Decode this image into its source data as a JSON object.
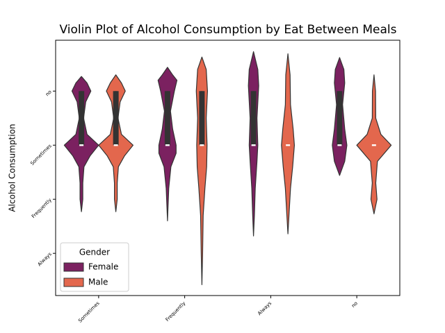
{
  "chart_data": {
    "type": "violin",
    "title": "Violin Plot of Alcohol Consumption by Eat Between Meals",
    "y_label": "Alcohol Consumption",
    "categories": [
      "Sometimes",
      "Frequently",
      "Always",
      "no"
    ],
    "ylim": [
      -0.94,
      3.78
    ],
    "y_inverted": true,
    "yticks": [
      {
        "value": 0,
        "label": "no"
      },
      {
        "value": 1,
        "label": "Sometimes"
      },
      {
        "value": 2,
        "label": "Frequently"
      },
      {
        "value": 3,
        "label": "Always"
      }
    ],
    "legend_title": "Gender",
    "legend_position": "lower left",
    "series": [
      {
        "name": "Female",
        "color": "#7b2160",
        "violins": [
          {
            "y": [
              -0.27,
              -0.15,
              0,
              0.2,
              0.5,
              0.8,
              1.0,
              1.2,
              1.4,
              1.7,
              2.0,
              2.23
            ],
            "width": [
              0,
              0.065,
              0.11,
              0.05,
              0.025,
              0.065,
              0.2,
              0.1,
              0.03,
              0.016,
              0.016,
              0
            ],
            "quartiles": [
              0,
              1,
              1
            ],
            "whiskers": [
              0,
              1
            ]
          },
          {
            "y": [
              -0.44,
              -0.3,
              -0.2,
              0,
              0.37,
              0.7,
              1.0,
              1.15,
              1.4,
              1.8,
              2.4
            ],
            "width": [
              0,
              0.06,
              0.11,
              0.08,
              0.035,
              0.06,
              0.1,
              0.1,
              0.04,
              0.015,
              0
            ],
            "quartiles": [
              0,
              1,
              1
            ],
            "whiskers": [
              0,
              1
            ]
          },
          {
            "y": [
              -0.73,
              -0.4,
              -0.1,
              0.5,
              1.0,
              1.3,
              1.8,
              2.3,
              2.68
            ],
            "width": [
              0,
              0.05,
              0.06,
              0.04,
              0.05,
              0.04,
              0.02,
              0.01,
              0
            ],
            "quartiles": [
              0,
              1,
              1
            ],
            "whiskers": [
              0,
              1
            ]
          },
          {
            "y": [
              -0.62,
              -0.4,
              -0.15,
              0.25,
              0.7,
              1.0,
              1.3,
              1.56
            ],
            "width": [
              0,
              0.05,
              0.06,
              0.035,
              0.06,
              0.085,
              0.06,
              0
            ],
            "quartiles": [
              0,
              1,
              1
            ],
            "whiskers": [
              0,
              1
            ]
          }
        ]
      },
      {
        "name": "Male",
        "color": "#e3674d",
        "violins": [
          {
            "y": [
              -0.3,
              -0.15,
              0,
              0.2,
              0.5,
              0.8,
              1.0,
              1.2,
              1.4,
              1.7,
              2.0,
              2.23
            ],
            "width": [
              0,
              0.065,
              0.11,
              0.05,
              0.025,
              0.065,
              0.2,
              0.1,
              0.03,
              0.016,
              0.016,
              0
            ],
            "quartiles": [
              0,
              1,
              1
            ],
            "whiskers": [
              0,
              1
            ]
          },
          {
            "y": [
              -0.63,
              -0.4,
              0,
              0.5,
              1.0,
              1.4,
              1.8,
              2.3,
              3.0,
              3.58
            ],
            "width": [
              0,
              0.05,
              0.065,
              0.05,
              0.06,
              0.055,
              0.035,
              0.015,
              0.008,
              0
            ],
            "quartiles": [
              0,
              1,
              1
            ],
            "whiskers": [
              0,
              1
            ]
          },
          {
            "y": [
              -0.69,
              -0.3,
              0.25,
              0.7,
              1.0,
              1.4,
              1.8,
              2.3,
              2.64
            ],
            "width": [
              0,
              0.025,
              0.03,
              0.06,
              0.075,
              0.055,
              0.03,
              0.012,
              0
            ],
            "quartiles": [
              1,
              1,
              1
            ],
            "whiskers": [
              1,
              1
            ]
          },
          {
            "y": [
              -0.3,
              0,
              0.5,
              0.8,
              1.0,
              1.3,
              1.7,
              2.0,
              2.27
            ],
            "width": [
              0,
              0.018,
              0.02,
              0.08,
              0.2,
              0.04,
              0.02,
              0.035,
              0
            ],
            "quartiles": [
              1,
              1,
              1
            ],
            "whiskers": [
              1,
              1
            ]
          }
        ]
      }
    ]
  }
}
